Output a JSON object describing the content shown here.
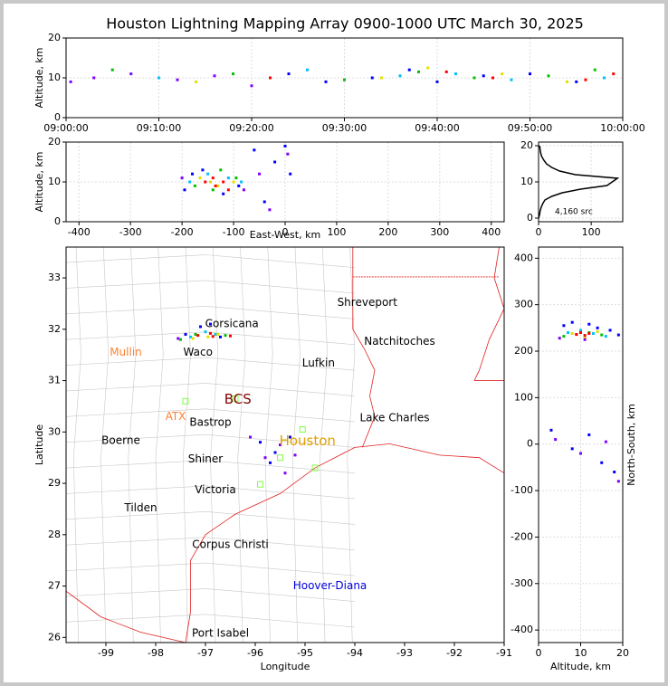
{
  "title": "Houston Lightning Mapping Array 0900-1000 UTC March 30, 2025",
  "chart_data": [
    {
      "type": "scatter",
      "ylabel": "Altitude, km",
      "xlim": [
        0,
        60
      ],
      "ylim": [
        0,
        20
      ],
      "xticks": [
        {
          "value": 0,
          "label": "09:00:00"
        },
        {
          "value": 10,
          "label": "09:10:00"
        },
        {
          "value": 20,
          "label": "09:20:00"
        },
        {
          "value": 30,
          "label": "09:30:00"
        },
        {
          "value": 40,
          "label": "09:40:00"
        },
        {
          "value": 50,
          "label": "09:50:00"
        },
        {
          "value": 60,
          "label": "10:00:00"
        }
      ],
      "yticks": [
        0,
        10,
        20
      ],
      "grid": true,
      "series": [
        {
          "color": "#8000ff",
          "x": [
            0.5,
            3,
            7,
            12,
            16,
            20
          ],
          "values": [
            9,
            10,
            11,
            9.5,
            10.5,
            8
          ]
        },
        {
          "color": "#0000ff",
          "x": [
            24,
            28,
            33,
            37,
            40,
            45,
            50,
            55
          ],
          "values": [
            11,
            9,
            10,
            12,
            9,
            10.5,
            11,
            9
          ]
        },
        {
          "color": "#00c0ff",
          "x": [
            10,
            26,
            36,
            42,
            48,
            58
          ],
          "values": [
            10,
            12,
            10.5,
            11,
            9.5,
            10
          ]
        },
        {
          "color": "#00c000",
          "x": [
            5,
            18,
            30,
            38,
            44,
            52,
            57
          ],
          "values": [
            12,
            11,
            9.5,
            11.5,
            10,
            10.5,
            12
          ]
        },
        {
          "color": "#e0e000",
          "x": [
            14,
            34,
            39,
            47,
            54
          ],
          "values": [
            9,
            10,
            12.5,
            11,
            9
          ]
        },
        {
          "color": "#ff0000",
          "x": [
            22,
            41,
            46,
            56,
            59
          ],
          "values": [
            10,
            11.5,
            10,
            9.5,
            11
          ]
        }
      ]
    },
    {
      "type": "scatter",
      "ylabel": "Altitude, km",
      "xlabel": "East-West, km",
      "xlim": [
        -425,
        425
      ],
      "ylim": [
        0,
        20
      ],
      "xticks": [
        -400,
        -300,
        -200,
        -100,
        0,
        100,
        200,
        300,
        400
      ],
      "yticks": [
        0,
        10,
        20
      ],
      "grid": true,
      "series": [
        {
          "color": "#0000ff",
          "x": [
            -195,
            -180,
            -160,
            -120,
            -90,
            -60,
            -20,
            0,
            10,
            -40
          ],
          "values": [
            8,
            12,
            13,
            7,
            9,
            18,
            15,
            19,
            12,
            5
          ]
        },
        {
          "color": "#00c0ff",
          "x": [
            -185,
            -150,
            -110,
            -85
          ],
          "values": [
            10,
            12,
            11,
            10
          ]
        },
        {
          "color": "#00c000",
          "x": [
            -175,
            -140,
            -125,
            -95
          ],
          "values": [
            9,
            8,
            13,
            11
          ]
        },
        {
          "color": "#e0e000",
          "x": [
            -165,
            -145,
            -130,
            -100
          ],
          "values": [
            11,
            10,
            9,
            10
          ]
        },
        {
          "color": "#ff0000",
          "x": [
            -155,
            -140,
            -135,
            -120,
            -110
          ],
          "values": [
            10,
            11,
            9,
            10,
            8
          ]
        },
        {
          "color": "#8000ff",
          "x": [
            -200,
            -80,
            -30,
            -50,
            5
          ],
          "values": [
            11,
            8,
            3,
            12,
            17
          ]
        }
      ]
    },
    {
      "type": "line",
      "orientation": "horizontal",
      "annotation": "4,160 src",
      "xlim": [
        0,
        160
      ],
      "ylim": [
        -1,
        21
      ],
      "xticks": [
        0,
        100
      ],
      "yticks": [
        0,
        10,
        20
      ],
      "grid": true,
      "series": [
        {
          "color": "#000000",
          "x": [
            0,
            1,
            2,
            3,
            4,
            5,
            6,
            7,
            8,
            9,
            10,
            11,
            12,
            13,
            14,
            15,
            16,
            17,
            18,
            19,
            20
          ],
          "values": [
            0,
            2,
            3,
            5,
            8,
            12,
            25,
            45,
            80,
            130,
            140,
            150,
            70,
            40,
            25,
            15,
            10,
            6,
            4,
            3,
            2
          ]
        }
      ]
    },
    {
      "type": "map",
      "xlabel": "Longitude",
      "ylabel": "Latitude",
      "xlim": [
        -99.8,
        -91
      ],
      "ylim": [
        25.9,
        33.6
      ],
      "xticks": [
        -99,
        -98,
        -97,
        -96,
        -95,
        -94,
        -93,
        -92,
        -91
      ],
      "yticks": [
        26,
        27,
        28,
        29,
        30,
        31,
        32,
        33
      ],
      "grid": false,
      "series": [
        {
          "color": "#0000ff",
          "x": [
            -97.4,
            -97.1,
            -96.9,
            -96.7,
            -95.9,
            -95.6,
            -95.3,
            -95.7
          ],
          "values": [
            31.9,
            32.05,
            32.1,
            31.85,
            29.8,
            29.6,
            29.9,
            29.4
          ]
        },
        {
          "color": "#00c0ff",
          "x": [
            -97.3,
            -97.0,
            -96.8
          ],
          "values": [
            31.85,
            31.95,
            31.9
          ]
        },
        {
          "color": "#00c000",
          "x": [
            -97.5,
            -97.2,
            -96.6
          ],
          "values": [
            31.8,
            31.9,
            31.88
          ]
        },
        {
          "color": "#e0e000",
          "x": [
            -97.25,
            -96.95,
            -96.75
          ],
          "values": [
            31.82,
            31.85,
            31.9
          ]
        },
        {
          "color": "#ff0000",
          "x": [
            -97.15,
            -96.9,
            -96.85,
            -96.5
          ],
          "values": [
            31.88,
            31.92,
            31.86,
            31.87
          ]
        },
        {
          "color": "#8000ff",
          "x": [
            -97.55,
            -96.1,
            -95.8,
            -95.5,
            -95.2,
            -95.4
          ],
          "values": [
            31.82,
            29.9,
            29.5,
            29.75,
            29.55,
            29.2
          ]
        }
      ],
      "cities": [
        {
          "label": "Corsicana",
          "lon": -96.47,
          "lat": 32.1,
          "color": "#000000",
          "size": 12
        },
        {
          "label": "Shreveport",
          "lon": -93.75,
          "lat": 32.52,
          "color": "#000000",
          "size": 12
        },
        {
          "label": "Natchitoches",
          "lon": -93.1,
          "lat": 31.76,
          "color": "#000000",
          "size": 12
        },
        {
          "label": "Lufkin",
          "lon": -94.73,
          "lat": 31.34,
          "color": "#000000",
          "size": 12
        },
        {
          "label": "Waco",
          "lon": -97.15,
          "lat": 31.55,
          "color": "#000000",
          "size": 12
        },
        {
          "label": "Mullin",
          "lon": -98.6,
          "lat": 31.55,
          "color": "#ff8030",
          "size": 12
        },
        {
          "label": "BCS",
          "lon": -96.35,
          "lat": 30.63,
          "color": "#800000",
          "size": 15
        },
        {
          "label": "ATX",
          "lon": -97.6,
          "lat": 30.3,
          "color": "#ff8030",
          "size": 12
        },
        {
          "label": "Bastrop",
          "lon": -96.9,
          "lat": 30.18,
          "color": "#000000",
          "size": 12
        },
        {
          "label": "Lake Charles",
          "lon": -93.2,
          "lat": 30.27,
          "color": "#000000",
          "size": 12
        },
        {
          "label": "Boerne",
          "lon": -98.7,
          "lat": 29.83,
          "color": "#000000",
          "size": 12
        },
        {
          "label": "Houston",
          "lon": -94.95,
          "lat": 29.82,
          "color": "#e0a000",
          "size": 15
        },
        {
          "label": "Shiner",
          "lon": -97.0,
          "lat": 29.47,
          "color": "#000000",
          "size": 12
        },
        {
          "label": "Victoria",
          "lon": -96.8,
          "lat": 28.87,
          "color": "#000000",
          "size": 12
        },
        {
          "label": "Tilden",
          "lon": -98.3,
          "lat": 28.52,
          "color": "#000000",
          "size": 12
        },
        {
          "label": "Corpus Christi",
          "lon": -96.5,
          "lat": 27.8,
          "color": "#000000",
          "size": 12
        },
        {
          "label": "Hoover-Diana",
          "lon": -94.5,
          "lat": 27.0,
          "color": "#0000dd",
          "size": 12
        },
        {
          "label": "Port Isabel",
          "lon": -96.7,
          "lat": 26.08,
          "color": "#000000",
          "size": 12
        }
      ],
      "stations": {
        "color": "#80ff40",
        "lon": [
          -97.4,
          -96.4,
          -95.05,
          -95.5,
          -94.8,
          -95.9
        ],
        "lat": [
          30.6,
          30.65,
          30.05,
          29.5,
          29.3,
          28.98
        ]
      }
    },
    {
      "type": "scatter",
      "xlabel": "Altitude, km",
      "ylabel": "North-South, km",
      "xlim": [
        0,
        20
      ],
      "ylim": [
        -427,
        424
      ],
      "xticks": [
        0,
        10,
        20
      ],
      "yticks": [
        -400,
        -300,
        -200,
        -100,
        0,
        100,
        200,
        300,
        400
      ],
      "grid": true,
      "series": [
        {
          "color": "#0000ff",
          "x": [
            6,
            8,
            12,
            14,
            17,
            19,
            3,
            8,
            12,
            15,
            18
          ],
          "values": [
            255,
            262,
            258,
            250,
            245,
            235,
            30,
            -10,
            20,
            -40,
            -60
          ]
        },
        {
          "color": "#00c0ff",
          "x": [
            7,
            10,
            13,
            16
          ],
          "values": [
            240,
            245,
            238,
            232
          ]
        },
        {
          "color": "#00c000",
          "x": [
            6,
            9,
            12,
            15
          ],
          "values": [
            232,
            236,
            240,
            235
          ]
        },
        {
          "color": "#e0e000",
          "x": [
            8,
            10,
            11,
            14
          ],
          "values": [
            238,
            240,
            230,
            242
          ]
        },
        {
          "color": "#ff0000",
          "x": [
            9,
            10,
            11,
            12
          ],
          "values": [
            236,
            240,
            234,
            238
          ]
        },
        {
          "color": "#8000ff",
          "x": [
            5,
            11,
            4,
            10,
            16,
            19
          ],
          "values": [
            228,
            225,
            10,
            -20,
            5,
            -80
          ]
        }
      ]
    }
  ]
}
